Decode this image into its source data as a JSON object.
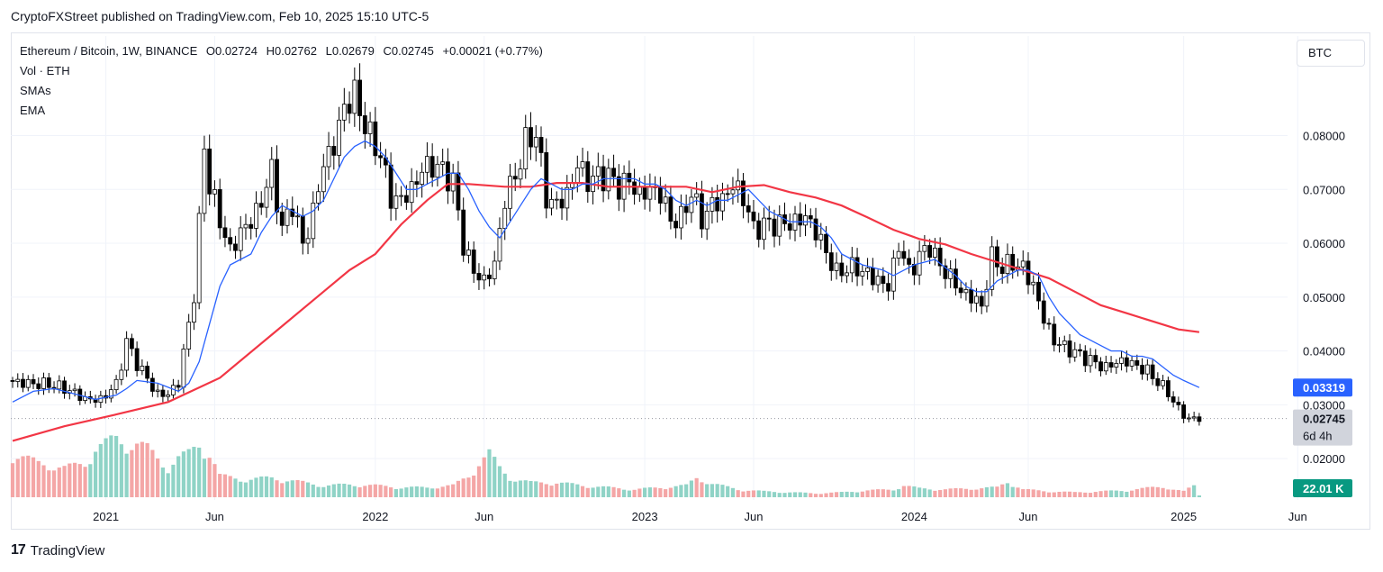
{
  "publisher_line": "CryptoFXStreet published on TradingView.com, Feb 10, 2025 15:10 UTC-5",
  "legend": {
    "symbol": "Ethereum / Bitcoin, 1W, BINANCE",
    "open": "O0.02724",
    "high": "H0.02762",
    "low": "L0.02679",
    "close": "C0.02745",
    "change": "+0.00021 (+0.77%)",
    "indicators": [
      "Vol · ETH",
      "SMAs",
      "EMA"
    ]
  },
  "scale_button": "BTC",
  "price_labels": {
    "ema": {
      "text": "0.03319",
      "color": "#2962ff"
    },
    "last": {
      "text": "0.02745",
      "countdown": "6d 4h",
      "color": "#d1d4dc"
    },
    "volume": {
      "text": "22.01 K",
      "color": "#089981"
    }
  },
  "footer": {
    "logo": "17",
    "brand": "TradingView"
  },
  "colors": {
    "up": "#ffffff",
    "down": "#000000",
    "ema_line": "#2962ff",
    "sma_line": "#f23645",
    "vol_up": "#8fd3c6",
    "vol_down": "#f4a6a6"
  },
  "chart_data": {
    "type": "candlestick",
    "timeframe": "1W",
    "ylim": [
      0.0165,
      0.0985
    ],
    "y_ticks": [
      "0.08000",
      "0.07000",
      "0.06000",
      "0.05000",
      "0.04000",
      "0.03000",
      "0.02000"
    ],
    "y_tick_values": [
      0.08,
      0.07,
      0.06,
      0.05,
      0.04,
      0.03,
      0.02
    ],
    "x_ticks": [
      {
        "label": "2021",
        "week": 18
      },
      {
        "label": "Jun",
        "week": 39
      },
      {
        "label": "2022",
        "week": 70
      },
      {
        "label": "Jun",
        "week": 91
      },
      {
        "label": "2023",
        "week": 122
      },
      {
        "label": "Jun",
        "week": 143
      },
      {
        "label": "2024",
        "week": 174
      },
      {
        "label": "Jun",
        "week": 196
      },
      {
        "label": "2025",
        "week": 226
      },
      {
        "label": "Jun",
        "week": 248
      }
    ],
    "weeks_total": 230,
    "close_points": [
      [
        0,
        0.0345
      ],
      [
        4,
        0.0338
      ],
      [
        8,
        0.0335
      ],
      [
        12,
        0.0325
      ],
      [
        15,
        0.031
      ],
      [
        18,
        0.031
      ],
      [
        21,
        0.034
      ],
      [
        23,
        0.042
      ],
      [
        25,
        0.038
      ],
      [
        27,
        0.035
      ],
      [
        29,
        0.032
      ],
      [
        31,
        0.032
      ],
      [
        33,
        0.034
      ],
      [
        35,
        0.045
      ],
      [
        36,
        0.05
      ],
      [
        37,
        0.063
      ],
      [
        38,
        0.078
      ],
      [
        39,
        0.07
      ],
      [
        41,
        0.064
      ],
      [
        43,
        0.058
      ],
      [
        45,
        0.062
      ],
      [
        47,
        0.064
      ],
      [
        49,
        0.068
      ],
      [
        51,
        0.074
      ],
      [
        53,
        0.063
      ],
      [
        55,
        0.068
      ],
      [
        57,
        0.06
      ],
      [
        59,
        0.066
      ],
      [
        61,
        0.075
      ],
      [
        63,
        0.078
      ],
      [
        65,
        0.085
      ],
      [
        67,
        0.087
      ],
      [
        68,
        0.084
      ],
      [
        70,
        0.079
      ],
      [
        72,
        0.076
      ],
      [
        74,
        0.068
      ],
      [
        76,
        0.068
      ],
      [
        78,
        0.07
      ],
      [
        80,
        0.074
      ],
      [
        82,
        0.075
      ],
      [
        84,
        0.074
      ],
      [
        86,
        0.072
      ],
      [
        88,
        0.06
      ],
      [
        90,
        0.055
      ],
      [
        92,
        0.053
      ],
      [
        94,
        0.056
      ],
      [
        96,
        0.068
      ],
      [
        98,
        0.072
      ],
      [
        100,
        0.078
      ],
      [
        102,
        0.08
      ],
      [
        104,
        0.068
      ],
      [
        106,
        0.067
      ],
      [
        108,
        0.069
      ],
      [
        110,
        0.075
      ],
      [
        112,
        0.072
      ],
      [
        114,
        0.073
      ],
      [
        116,
        0.073
      ],
      [
        118,
        0.071
      ],
      [
        120,
        0.072
      ],
      [
        122,
        0.069
      ],
      [
        124,
        0.07
      ],
      [
        126,
        0.069
      ],
      [
        128,
        0.064
      ],
      [
        130,
        0.064
      ],
      [
        132,
        0.069
      ],
      [
        134,
        0.064
      ],
      [
        136,
        0.067
      ],
      [
        138,
        0.068
      ],
      [
        140,
        0.071
      ],
      [
        142,
        0.069
      ],
      [
        144,
        0.063
      ],
      [
        146,
        0.064
      ],
      [
        148,
        0.064
      ],
      [
        150,
        0.064
      ],
      [
        152,
        0.064
      ],
      [
        154,
        0.065
      ],
      [
        156,
        0.062
      ],
      [
        158,
        0.058
      ],
      [
        160,
        0.054
      ],
      [
        162,
        0.055
      ],
      [
        164,
        0.055
      ],
      [
        166,
        0.054
      ],
      [
        168,
        0.053
      ],
      [
        170,
        0.052
      ],
      [
        172,
        0.06
      ],
      [
        174,
        0.055
      ],
      [
        176,
        0.058
      ],
      [
        178,
        0.06
      ],
      [
        180,
        0.056
      ],
      [
        182,
        0.054
      ],
      [
        184,
        0.051
      ],
      [
        186,
        0.05
      ],
      [
        188,
        0.048
      ],
      [
        190,
        0.057
      ],
      [
        192,
        0.055
      ],
      [
        194,
        0.056
      ],
      [
        196,
        0.055
      ],
      [
        198,
        0.052
      ],
      [
        200,
        0.046
      ],
      [
        202,
        0.042
      ],
      [
        204,
        0.041
      ],
      [
        206,
        0.04
      ],
      [
        208,
        0.039
      ],
      [
        210,
        0.038
      ],
      [
        212,
        0.037
      ],
      [
        214,
        0.038
      ],
      [
        216,
        0.038
      ],
      [
        218,
        0.037
      ],
      [
        220,
        0.036
      ],
      [
        222,
        0.034
      ],
      [
        224,
        0.032
      ],
      [
        226,
        0.029
      ],
      [
        228,
        0.0272
      ],
      [
        229,
        0.02745
      ]
    ],
    "volume_points": [
      [
        0,
        0.45
      ],
      [
        5,
        0.35
      ],
      [
        10,
        0.3
      ],
      [
        14,
        0.35
      ],
      [
        16,
        0.5
      ],
      [
        18,
        0.55
      ],
      [
        20,
        0.6
      ],
      [
        22,
        0.55
      ],
      [
        24,
        0.55
      ],
      [
        26,
        0.5
      ],
      [
        28,
        0.4
      ],
      [
        30,
        0.3
      ],
      [
        32,
        0.4
      ],
      [
        34,
        0.45
      ],
      [
        36,
        0.55
      ],
      [
        38,
        0.45
      ],
      [
        40,
        0.22
      ],
      [
        45,
        0.18
      ],
      [
        50,
        0.2
      ],
      [
        55,
        0.16
      ],
      [
        60,
        0.12
      ],
      [
        65,
        0.13
      ],
      [
        70,
        0.12
      ],
      [
        75,
        0.1
      ],
      [
        80,
        0.1
      ],
      [
        85,
        0.12
      ],
      [
        88,
        0.22
      ],
      [
        90,
        0.35
      ],
      [
        92,
        0.45
      ],
      [
        94,
        0.3
      ],
      [
        96,
        0.2
      ],
      [
        100,
        0.15
      ],
      [
        105,
        0.15
      ],
      [
        110,
        0.12
      ],
      [
        115,
        0.1
      ],
      [
        120,
        0.08
      ],
      [
        125,
        0.1
      ],
      [
        130,
        0.12
      ],
      [
        132,
        0.2
      ],
      [
        135,
        0.14
      ],
      [
        140,
        0.08
      ],
      [
        145,
        0.06
      ],
      [
        150,
        0.05
      ],
      [
        155,
        0.04
      ],
      [
        160,
        0.05
      ],
      [
        165,
        0.07
      ],
      [
        170,
        0.08
      ],
      [
        172,
        0.12
      ],
      [
        175,
        0.09
      ],
      [
        180,
        0.08
      ],
      [
        185,
        0.09
      ],
      [
        190,
        0.1
      ],
      [
        192,
        0.16
      ],
      [
        195,
        0.08
      ],
      [
        200,
        0.06
      ],
      [
        205,
        0.05
      ],
      [
        210,
        0.06
      ],
      [
        215,
        0.07
      ],
      [
        220,
        0.1
      ],
      [
        222,
        0.11
      ],
      [
        224,
        0.08
      ],
      [
        226,
        0.06
      ],
      [
        228,
        0.12
      ],
      [
        229,
        0.02
      ]
    ],
    "ema_points": [
      [
        0,
        0.0305
      ],
      [
        4,
        0.0325
      ],
      [
        8,
        0.033
      ],
      [
        12,
        0.032
      ],
      [
        16,
        0.031
      ],
      [
        20,
        0.0318
      ],
      [
        22,
        0.033
      ],
      [
        24,
        0.0345
      ],
      [
        28,
        0.034
      ],
      [
        32,
        0.0325
      ],
      [
        34,
        0.034
      ],
      [
        36,
        0.038
      ],
      [
        38,
        0.045
      ],
      [
        40,
        0.052
      ],
      [
        42,
        0.056
      ],
      [
        44,
        0.057
      ],
      [
        46,
        0.058
      ],
      [
        48,
        0.062
      ],
      [
        50,
        0.065
      ],
      [
        52,
        0.067
      ],
      [
        54,
        0.066
      ],
      [
        56,
        0.065
      ],
      [
        58,
        0.066
      ],
      [
        60,
        0.068
      ],
      [
        62,
        0.072
      ],
      [
        64,
        0.076
      ],
      [
        66,
        0.078
      ],
      [
        68,
        0.079
      ],
      [
        70,
        0.078
      ],
      [
        72,
        0.076
      ],
      [
        74,
        0.073
      ],
      [
        76,
        0.07
      ],
      [
        78,
        0.07
      ],
      [
        80,
        0.071
      ],
      [
        82,
        0.072
      ],
      [
        84,
        0.073
      ],
      [
        86,
        0.073
      ],
      [
        88,
        0.07
      ],
      [
        90,
        0.066
      ],
      [
        92,
        0.063
      ],
      [
        94,
        0.061
      ],
      [
        96,
        0.064
      ],
      [
        98,
        0.067
      ],
      [
        100,
        0.07
      ],
      [
        102,
        0.072
      ],
      [
        104,
        0.071
      ],
      [
        106,
        0.07
      ],
      [
        108,
        0.07
      ],
      [
        110,
        0.071
      ],
      [
        112,
        0.071
      ],
      [
        114,
        0.072
      ],
      [
        116,
        0.072
      ],
      [
        118,
        0.072
      ],
      [
        120,
        0.072
      ],
      [
        122,
        0.071
      ],
      [
        124,
        0.071
      ],
      [
        126,
        0.07
      ],
      [
        128,
        0.068
      ],
      [
        130,
        0.067
      ],
      [
        132,
        0.068
      ],
      [
        134,
        0.067
      ],
      [
        136,
        0.068
      ],
      [
        138,
        0.068
      ],
      [
        140,
        0.069
      ],
      [
        142,
        0.07
      ],
      [
        144,
        0.068
      ],
      [
        146,
        0.066
      ],
      [
        148,
        0.065
      ],
      [
        150,
        0.064
      ],
      [
        152,
        0.064
      ],
      [
        154,
        0.064
      ],
      [
        156,
        0.063
      ],
      [
        158,
        0.061
      ],
      [
        160,
        0.058
      ],
      [
        162,
        0.057
      ],
      [
        164,
        0.056
      ],
      [
        166,
        0.0555
      ],
      [
        168,
        0.055
      ],
      [
        170,
        0.054
      ],
      [
        172,
        0.055
      ],
      [
        174,
        0.056
      ],
      [
        176,
        0.0565
      ],
      [
        178,
        0.057
      ],
      [
        180,
        0.0555
      ],
      [
        182,
        0.054
      ],
      [
        184,
        0.052
      ],
      [
        186,
        0.051
      ],
      [
        188,
        0.051
      ],
      [
        190,
        0.053
      ],
      [
        192,
        0.054
      ],
      [
        194,
        0.055
      ],
      [
        196,
        0.055
      ],
      [
        198,
        0.054
      ],
      [
        200,
        0.05
      ],
      [
        202,
        0.047
      ],
      [
        204,
        0.045
      ],
      [
        206,
        0.043
      ],
      [
        208,
        0.042
      ],
      [
        210,
        0.041
      ],
      [
        212,
        0.04
      ],
      [
        214,
        0.04
      ],
      [
        216,
        0.039
      ],
      [
        218,
        0.039
      ],
      [
        220,
        0.0385
      ],
      [
        222,
        0.037
      ],
      [
        224,
        0.0355
      ],
      [
        226,
        0.0345
      ],
      [
        229,
        0.0332
      ]
    ],
    "sma_points": [
      [
        0,
        0.0233
      ],
      [
        10,
        0.026
      ],
      [
        20,
        0.0282
      ],
      [
        30,
        0.0305
      ],
      [
        40,
        0.035
      ],
      [
        50,
        0.043
      ],
      [
        60,
        0.051
      ],
      [
        65,
        0.055
      ],
      [
        70,
        0.058
      ],
      [
        75,
        0.0635
      ],
      [
        80,
        0.068
      ],
      [
        84,
        0.071
      ],
      [
        88,
        0.071
      ],
      [
        95,
        0.0705
      ],
      [
        100,
        0.0705
      ],
      [
        105,
        0.0712
      ],
      [
        110,
        0.0712
      ],
      [
        115,
        0.0705
      ],
      [
        120,
        0.0705
      ],
      [
        125,
        0.0705
      ],
      [
        130,
        0.0705
      ],
      [
        135,
        0.0695
      ],
      [
        140,
        0.0705
      ],
      [
        145,
        0.0708
      ],
      [
        150,
        0.0695
      ],
      [
        155,
        0.0685
      ],
      [
        160,
        0.067
      ],
      [
        165,
        0.0648
      ],
      [
        170,
        0.0625
      ],
      [
        175,
        0.0608
      ],
      [
        180,
        0.0598
      ],
      [
        185,
        0.058
      ],
      [
        190,
        0.0565
      ],
      [
        195,
        0.055
      ],
      [
        200,
        0.0535
      ],
      [
        205,
        0.051
      ],
      [
        210,
        0.0485
      ],
      [
        215,
        0.047
      ],
      [
        220,
        0.0455
      ],
      [
        225,
        0.044
      ],
      [
        229,
        0.0435
      ]
    ]
  }
}
